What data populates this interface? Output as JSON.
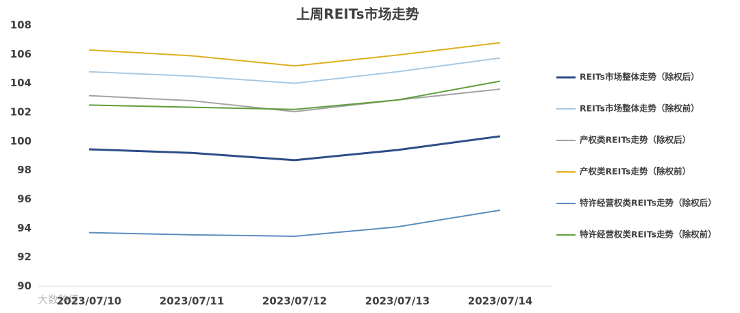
{
  "chart_data": {
    "type": "line",
    "title": "上周REITs市场走势",
    "x": [
      "2023/07/10",
      "2023/07/11",
      "2023/07/12",
      "2023/07/13",
      "2023/07/14"
    ],
    "ylim": [
      90,
      108
    ],
    "yticks": [
      90,
      92,
      94,
      96,
      98,
      100,
      102,
      104,
      106,
      108
    ],
    "grid": false,
    "legend": "right",
    "series": [
      {
        "name": "REITs市场整体走势（除权后）",
        "color": "#2e4d87",
        "values": [
          99.45,
          99.2,
          98.7,
          99.4,
          100.35
        ]
      },
      {
        "name": "REITs市场整体走势（除权前）",
        "color": "#a9c9e2",
        "values": [
          104.8,
          104.5,
          104.0,
          104.8,
          105.75
        ]
      },
      {
        "name": "产权类REITs走势（除权后）",
        "color": "#a3a3a3",
        "values": [
          103.15,
          102.8,
          102.05,
          102.85,
          103.6
        ]
      },
      {
        "name": "产权类REITs走势（除权前）",
        "color": "#dfae1d",
        "values": [
          106.3,
          105.9,
          105.2,
          105.95,
          106.8
        ]
      },
      {
        "name": "特许经营权类REITs走势（除权后）",
        "color": "#5b8dbf",
        "values": [
          93.7,
          93.55,
          93.45,
          94.1,
          95.25
        ]
      },
      {
        "name": "特许经营权类REITs走势（除权前）",
        "color": "#5e9e3c",
        "values": [
          102.5,
          102.35,
          102.2,
          102.85,
          104.15
        ]
      }
    ]
  },
  "watermark": "大数跨境"
}
